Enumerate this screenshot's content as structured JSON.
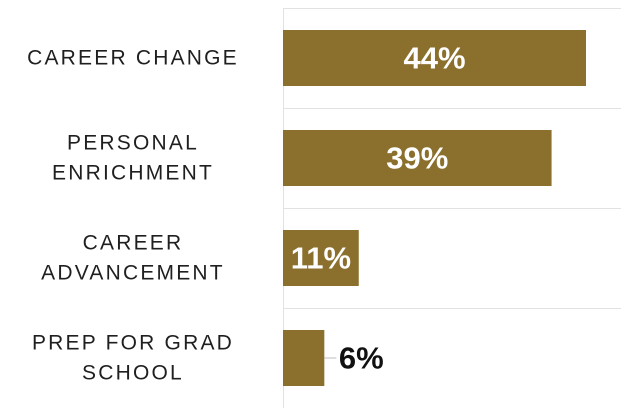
{
  "chart_data": {
    "type": "bar",
    "orientation": "horizontal",
    "categories": [
      "CAREER CHANGE",
      "PERSONAL ENRICHMENT",
      "CAREER ADVANCEMENT",
      "PREP FOR GRAD SCHOOL"
    ],
    "category_label_lines": [
      [
        "CAREER CHANGE"
      ],
      [
        "PERSONAL",
        "ENRICHMENT"
      ],
      [
        "CAREER",
        "ADVANCEMENT"
      ],
      [
        "PREP FOR GRAD",
        "SCHOOL"
      ]
    ],
    "values": [
      44,
      39,
      11,
      6
    ],
    "value_labels": [
      "44%",
      "39%",
      "11%",
      "6%"
    ],
    "unit": "%",
    "title": "",
    "xlabel": "",
    "ylabel": "",
    "xlim": [
      0,
      50
    ],
    "grid": true,
    "legend": "none",
    "bar_color": "#8b6f2c",
    "inside_label_color": "#ffffff",
    "outside_label_color": "#111111",
    "grid_color": "#e2e2e2"
  }
}
